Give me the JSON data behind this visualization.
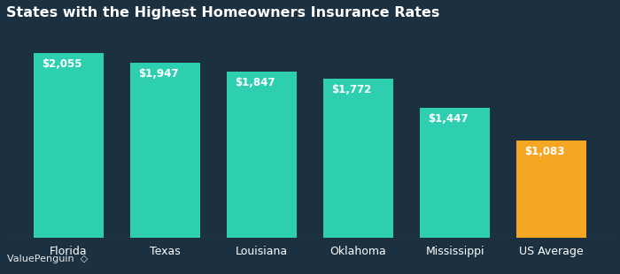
{
  "title": "States with the Highest Homeowners Insurance Rates",
  "categories": [
    "Florida",
    "Texas",
    "Louisiana",
    "Oklahoma",
    "Mississippi",
    "US Average"
  ],
  "values": [
    2055,
    1947,
    1847,
    1772,
    1447,
    1083
  ],
  "labels": [
    "$2,055",
    "$1,947",
    "$1,847",
    "$1,772",
    "$1,447",
    "$1,083"
  ],
  "bar_colors": [
    "#2ecfb1",
    "#2ecfb1",
    "#2ecfb1",
    "#2ecfb1",
    "#2ecfb1",
    "#f5a623"
  ],
  "background_color": "#1b3040",
  "text_color": "#ffffff",
  "title_fontsize": 11.5,
  "label_fontsize": 8.5,
  "tick_fontsize": 9,
  "ylim": [
    0,
    2350
  ],
  "watermark": "ValuePenguin",
  "bar_width": 0.72
}
